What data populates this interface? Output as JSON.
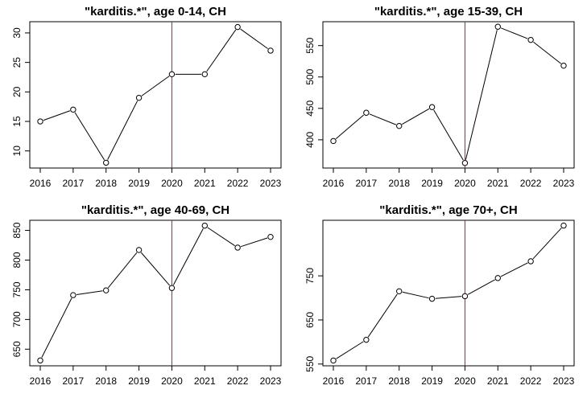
{
  "colors": {
    "line": "#000000",
    "marker_fill": "#ffffff",
    "reference_line": "#ff0000",
    "frame": "#000000"
  },
  "chart_data": [
    {
      "type": "line",
      "title": "\"karditis.*\", age 0-14, CH",
      "x": [
        2016,
        2017,
        2018,
        2019,
        2020,
        2021,
        2022,
        2023
      ],
      "series": [
        {
          "values": [
            15,
            17,
            8,
            19,
            23,
            23,
            31,
            27
          ]
        }
      ],
      "xticks": [
        "2016",
        "2017",
        "2018",
        "2019",
        "2020",
        "2021",
        "2022",
        "2023"
      ],
      "yticks": [
        10,
        15,
        20,
        25,
        30
      ],
      "ylim": [
        7.1,
        31.9
      ],
      "reference_x": 2020,
      "markers": "open-circle"
    },
    {
      "type": "line",
      "title": "\"karditis.*\", age 15-39, CH",
      "x": [
        2016,
        2017,
        2018,
        2019,
        2020,
        2021,
        2022,
        2023
      ],
      "series": [
        {
          "values": [
            398,
            443,
            422,
            452,
            363,
            580,
            559,
            518
          ]
        }
      ],
      "xticks": [
        "2016",
        "2017",
        "2018",
        "2019",
        "2020",
        "2021",
        "2022",
        "2023"
      ],
      "yticks": [
        400,
        450,
        500,
        550
      ],
      "ylim": [
        355,
        588
      ],
      "reference_x": 2020,
      "markers": "open-circle"
    },
    {
      "type": "line",
      "title": "\"karditis.*\", age 40-69, CH",
      "x": [
        2016,
        2017,
        2018,
        2019,
        2020,
        2021,
        2022,
        2023
      ],
      "series": [
        {
          "values": [
            631,
            741,
            749,
            817,
            753,
            858,
            821,
            839
          ]
        }
      ],
      "xticks": [
        "2016",
        "2017",
        "2018",
        "2019",
        "2020",
        "2021",
        "2022",
        "2023"
      ],
      "yticks": [
        650,
        700,
        750,
        800,
        850
      ],
      "ylim": [
        622,
        867
      ],
      "reference_x": 2020,
      "markers": "open-circle"
    },
    {
      "type": "line",
      "title": "\"karditis.*\", age 70+, CH",
      "x": [
        2016,
        2017,
        2018,
        2019,
        2020,
        2021,
        2022,
        2023
      ],
      "series": [
        {
          "values": [
            558,
            605,
            715,
            698,
            704,
            745,
            783,
            864
          ]
        }
      ],
      "xticks": [
        "2016",
        "2017",
        "2018",
        "2019",
        "2020",
        "2021",
        "2022",
        "2023"
      ],
      "yticks": [
        550,
        650,
        750
      ],
      "ylim": [
        546,
        876
      ],
      "reference_x": 2020,
      "markers": "open-circle"
    }
  ]
}
